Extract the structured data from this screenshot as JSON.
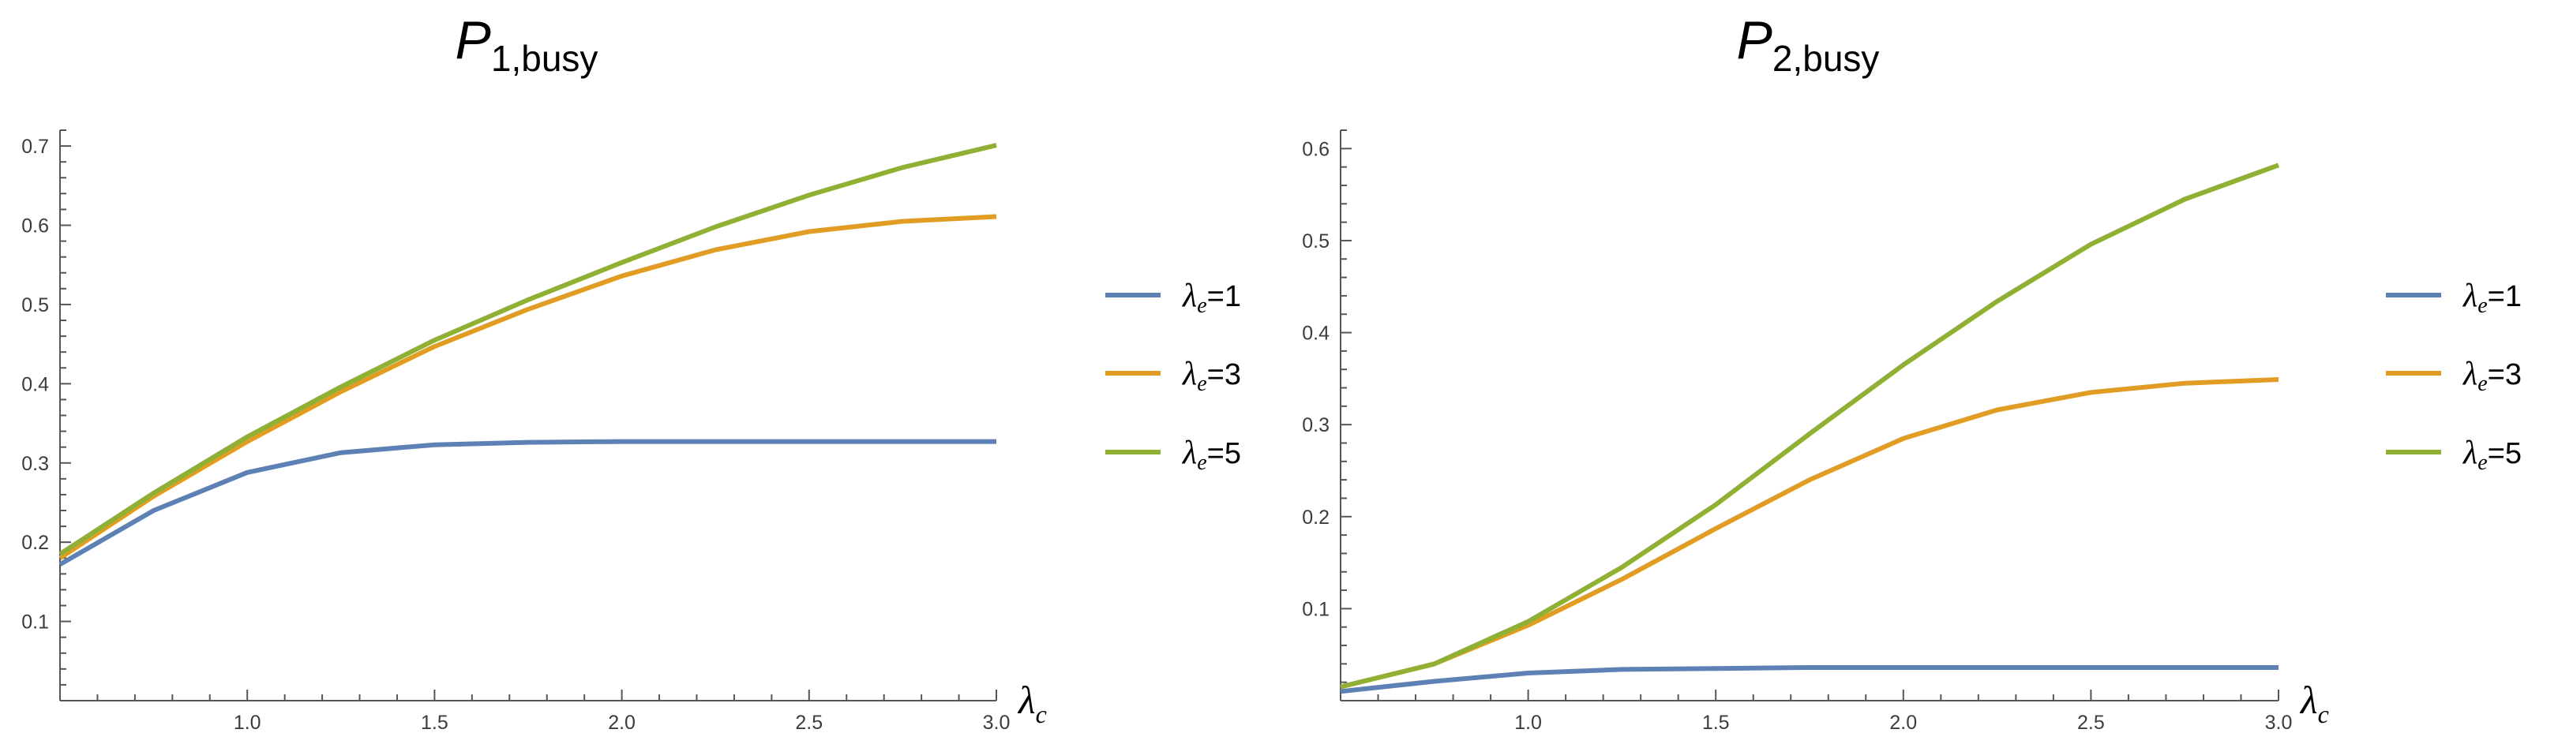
{
  "chart_data": [
    {
      "type": "line",
      "title": {
        "symbol": "P",
        "subscript": "1,busy"
      },
      "xlabel": {
        "symbol": "λ",
        "subscript": "c"
      },
      "ylabel": "",
      "xlim": [
        0.5,
        3.0
      ],
      "ylim": [
        0.0,
        0.72
      ],
      "xticks": [
        1.0,
        1.5,
        2.0,
        2.5,
        3.0
      ],
      "xtick_labels": [
        "1.0",
        "1.5",
        "2.0",
        "2.5",
        "3.0"
      ],
      "yticks": [
        0.1,
        0.2,
        0.3,
        0.4,
        0.5,
        0.6,
        0.7
      ],
      "ytick_labels": [
        "0.1",
        "0.2",
        "0.3",
        "0.4",
        "0.5",
        "0.6",
        "0.7"
      ],
      "x": [
        0.5,
        0.75,
        1.0,
        1.25,
        1.5,
        1.75,
        2.0,
        2.25,
        2.5,
        2.75,
        3.0
      ],
      "series": [
        {
          "name": "λe=1",
          "color": "#5e81b5",
          "values": [
            0.172,
            0.24,
            0.288,
            0.313,
            0.323,
            0.326,
            0.327,
            0.327,
            0.327,
            0.327,
            0.327
          ]
        },
        {
          "name": "λe=3",
          "color": "#e19c24",
          "values": [
            0.18,
            0.258,
            0.327,
            0.39,
            0.447,
            0.494,
            0.536,
            0.569,
            0.592,
            0.605,
            0.611
          ]
        },
        {
          "name": "λe=5",
          "color": "#8fb032",
          "values": [
            0.185,
            0.262,
            0.333,
            0.396,
            0.455,
            0.506,
            0.553,
            0.598,
            0.638,
            0.673,
            0.701
          ]
        }
      ],
      "legend": {
        "placement": "right",
        "entries": [
          {
            "symbol": "λ",
            "sub": "e",
            "rest": "=1",
            "color": "#5e81b5"
          },
          {
            "symbol": "λ",
            "sub": "e",
            "rest": "=3",
            "color": "#e19c24"
          },
          {
            "symbol": "λ",
            "sub": "e",
            "rest": "=5",
            "color": "#8fb032"
          }
        ]
      }
    },
    {
      "type": "line",
      "title": {
        "symbol": "P",
        "subscript": "2,busy"
      },
      "xlabel": {
        "symbol": "λ",
        "subscript": "c"
      },
      "ylabel": "",
      "xlim": [
        0.5,
        3.0
      ],
      "ylim": [
        0.0,
        0.62
      ],
      "xticks": [
        1.0,
        1.5,
        2.0,
        2.5,
        3.0
      ],
      "xtick_labels": [
        "1.0",
        "1.5",
        "2.0",
        "2.5",
        "3.0"
      ],
      "yticks": [
        0.1,
        0.2,
        0.3,
        0.4,
        0.5,
        0.6
      ],
      "ytick_labels": [
        "0.1",
        "0.2",
        "0.3",
        "0.4",
        "0.5",
        "0.6"
      ],
      "x": [
        0.5,
        0.75,
        1.0,
        1.25,
        1.5,
        1.75,
        2.0,
        2.25,
        2.5,
        2.75,
        3.0
      ],
      "series": [
        {
          "name": "λe=1",
          "color": "#5e81b5",
          "values": [
            0.01,
            0.021,
            0.03,
            0.034,
            0.035,
            0.036,
            0.036,
            0.036,
            0.036,
            0.036,
            0.036
          ]
        },
        {
          "name": "λe=3",
          "color": "#e19c24",
          "values": [
            0.015,
            0.04,
            0.082,
            0.132,
            0.187,
            0.24,
            0.285,
            0.316,
            0.335,
            0.345,
            0.349
          ]
        },
        {
          "name": "λe=5",
          "color": "#8fb032",
          "values": [
            0.015,
            0.04,
            0.086,
            0.145,
            0.213,
            0.29,
            0.365,
            0.434,
            0.496,
            0.545,
            0.582
          ]
        }
      ],
      "legend": {
        "placement": "right",
        "entries": [
          {
            "symbol": "λ",
            "sub": "e",
            "rest": "=1",
            "color": "#5e81b5"
          },
          {
            "symbol": "λ",
            "sub": "e",
            "rest": "=3",
            "color": "#e19c24"
          },
          {
            "symbol": "λ",
            "sub": "e",
            "rest": "=5",
            "color": "#8fb032"
          }
        ]
      }
    }
  ]
}
